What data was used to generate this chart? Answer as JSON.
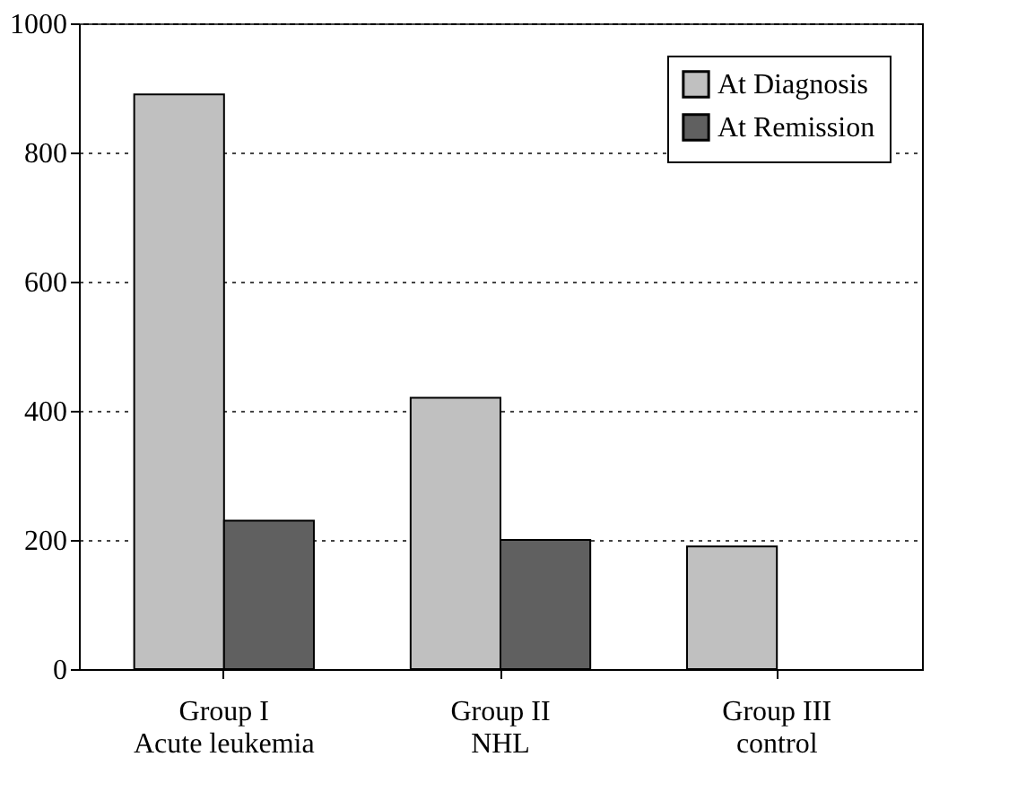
{
  "chart_data": {
    "type": "bar",
    "categories": [
      "Group I\nAcute leukemia",
      "Group II\nNHL",
      "Group III\ncontrol"
    ],
    "series": [
      {
        "name": "At Diagnosis",
        "color": "#c0c0c0",
        "values": [
          890,
          420,
          190
        ]
      },
      {
        "name": "At Remission",
        "color": "#606060",
        "values": [
          230,
          200,
          null
        ]
      }
    ],
    "ylim": [
      0,
      1000
    ],
    "yticks": [
      0,
      200,
      400,
      600,
      800,
      1000
    ],
    "grid": "y",
    "legend": "top right"
  }
}
